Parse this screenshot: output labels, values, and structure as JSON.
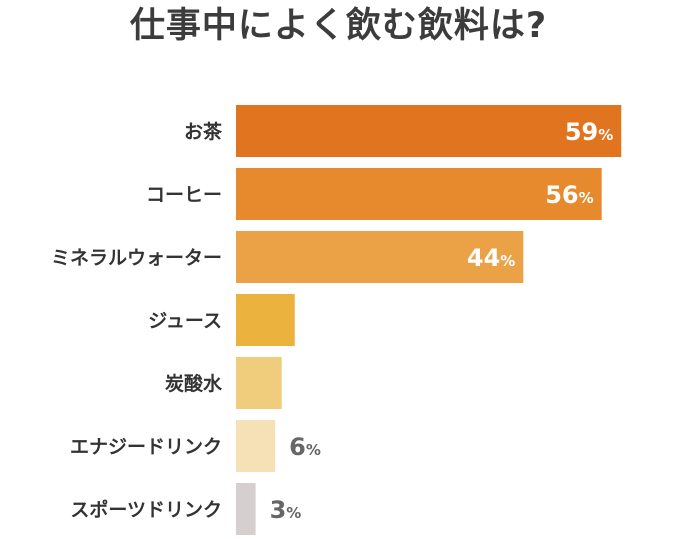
{
  "chart_data": {
    "type": "bar",
    "orientation": "horizontal",
    "title": "仕事中によく飲む飲料は?",
    "unit": "%",
    "categories": [
      "お茶",
      "コーヒー",
      "ミネラルウォーター",
      "ジュース",
      "炭酸水",
      "エナジードリンク",
      "スポーツドリンク"
    ],
    "values": [
      59,
      56,
      44,
      9,
      7,
      6,
      3
    ],
    "bar_colors": [
      "#e0741f",
      "#e78a2d",
      "#eba246",
      "#ebb23e",
      "#f0cd7d",
      "#f5e1b5",
      "#d6cfcf"
    ],
    "label_colors": [
      "#ffffff",
      "#ffffff",
      "#ffffff",
      "#ffffff",
      "#ffffff",
      "#666666",
      "#666666"
    ],
    "xlim": [
      0,
      62
    ],
    "grid": false,
    "legend": "none"
  }
}
